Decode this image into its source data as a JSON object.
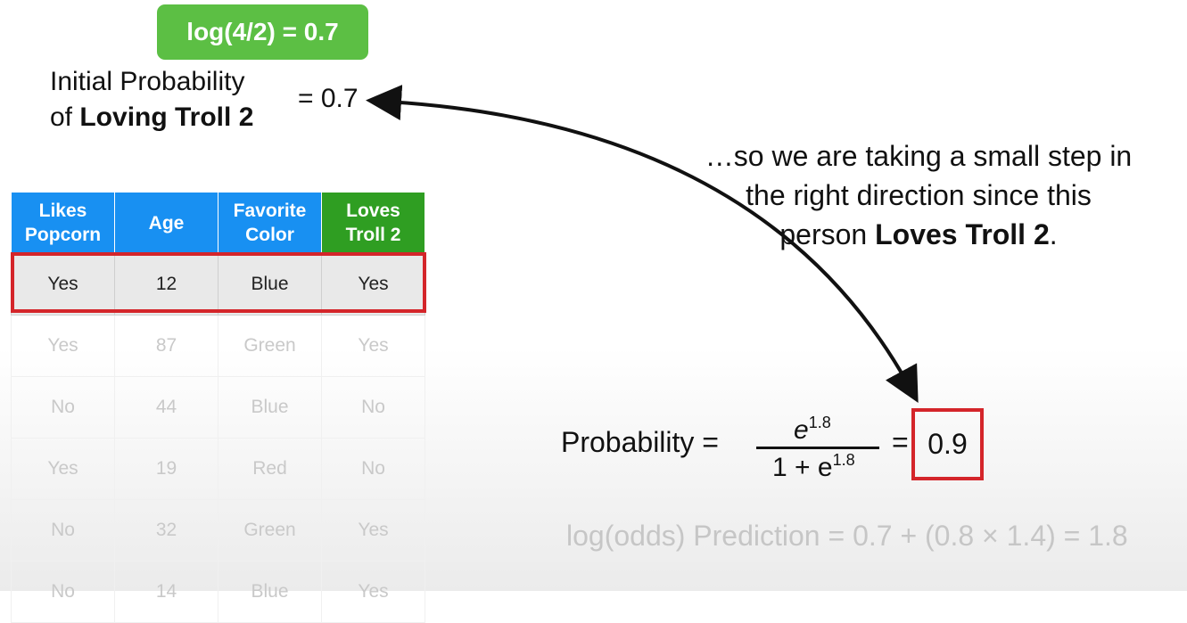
{
  "badge": "log(4/2) = 0.7",
  "initial_prob": {
    "line1": "Initial Probability",
    "line2_prefix": "of ",
    "line2_bold": "Loving Troll 2",
    "equals": "= 0.7"
  },
  "explanation": {
    "line1": "…so we are taking a small step in",
    "line2": "the right direction since this",
    "line3_prefix": "person ",
    "line3_bold": "Loves Troll 2",
    "line3_suffix": "."
  },
  "table": {
    "headers": [
      {
        "l1": "Likes",
        "l2": "Popcorn"
      },
      {
        "l1": "Age",
        "l2": ""
      },
      {
        "l1": "Favorite",
        "l2": "Color"
      },
      {
        "l1": "Loves",
        "l2": "Troll 2"
      }
    ],
    "rows": [
      [
        "Yes",
        "12",
        "Blue",
        "Yes"
      ],
      [
        "Yes",
        "87",
        "Green",
        "Yes"
      ],
      [
        "No",
        "44",
        "Blue",
        "No"
      ],
      [
        "Yes",
        "19",
        "Red",
        "No"
      ],
      [
        "No",
        "32",
        "Green",
        "Yes"
      ],
      [
        "No",
        "14",
        "Blue",
        "Yes"
      ]
    ]
  },
  "formula": {
    "label": "Probability =",
    "num_base": "e",
    "num_exp": "1.8",
    "den_prefix": "1 + e",
    "den_exp": "1.8",
    "equals": "=",
    "result": "0.9"
  },
  "logodds": "log(odds) Prediction = 0.7 + (0.8 × 1.4) = 1.8",
  "colors": {
    "badge_green": "#5cbf44",
    "header_blue": "#1890f2",
    "header_green": "#2f9e22",
    "highlight_red": "#d4252a"
  }
}
